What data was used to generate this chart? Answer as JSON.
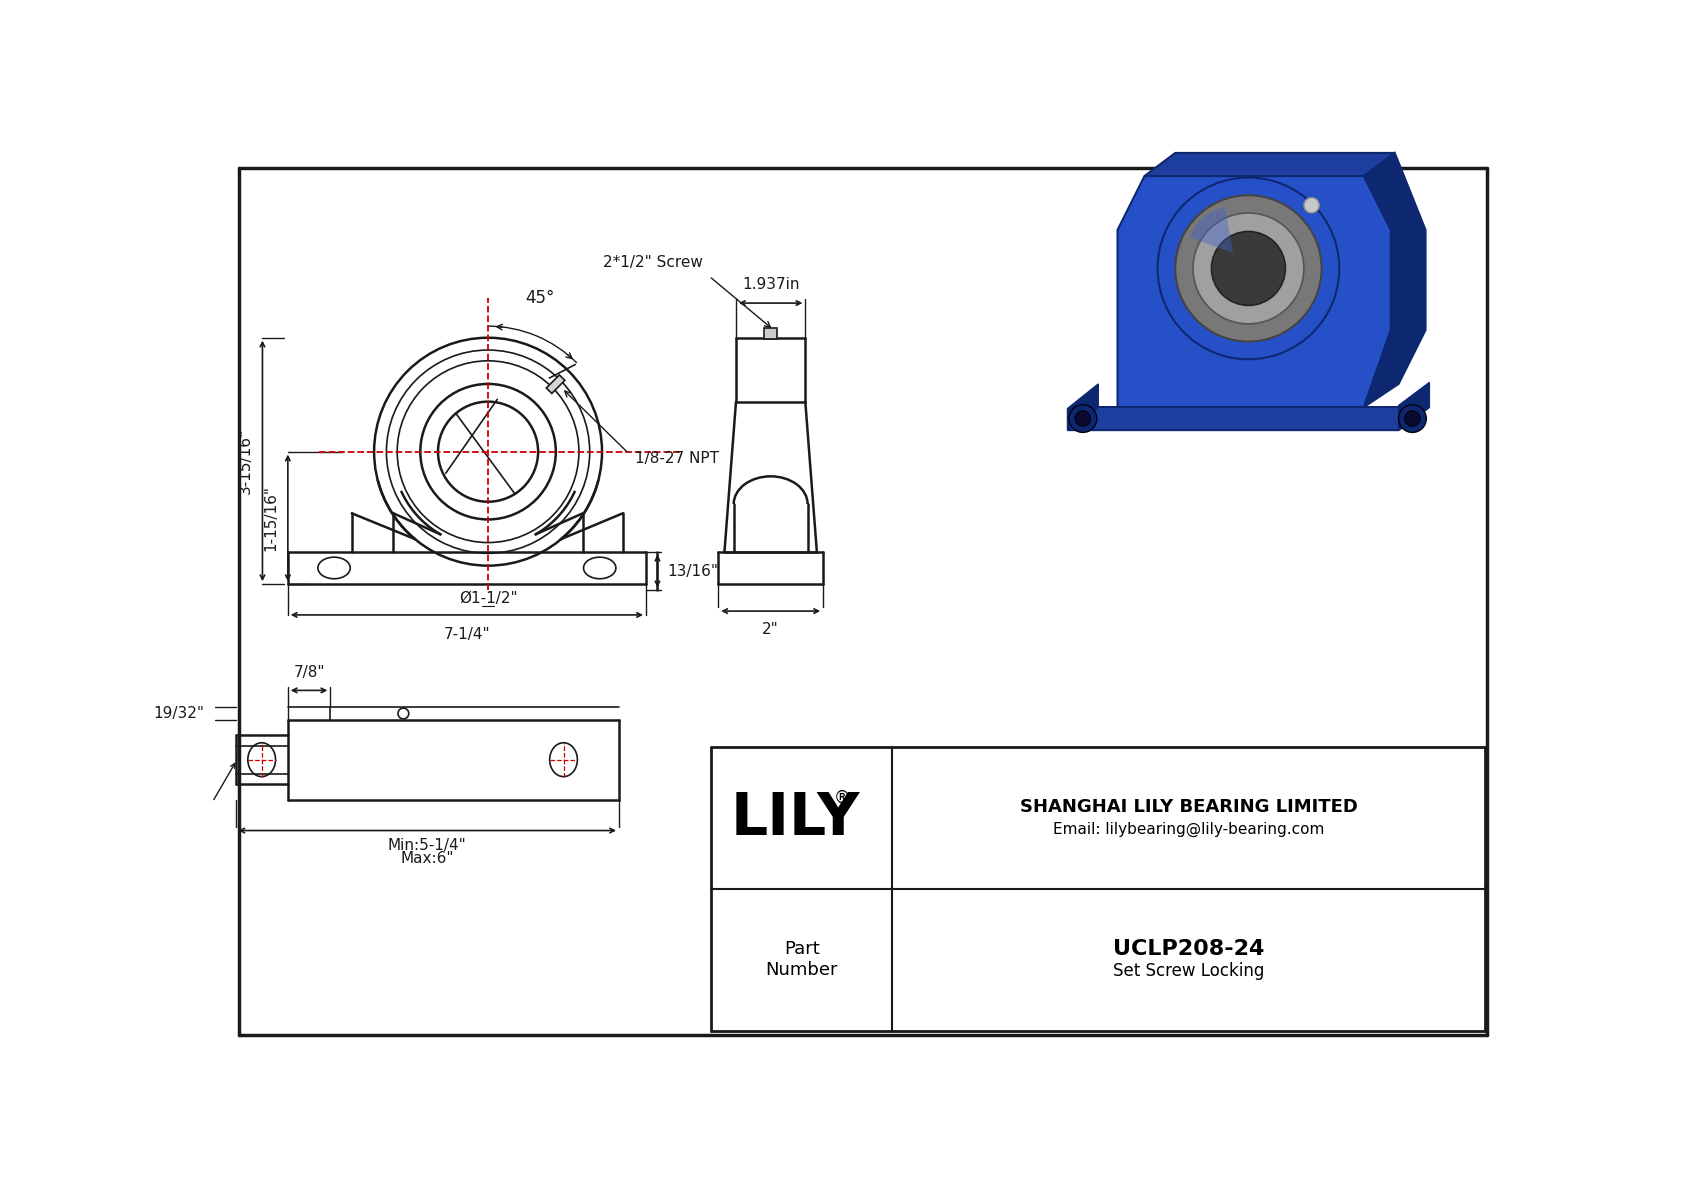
{
  "bg_color": "#ffffff",
  "lc": "#1a1a1a",
  "rc": "#cc0000",
  "blue1": "#1e3fa0",
  "blue2": "#2650c8",
  "blue3": "#0d2870",
  "gray1": "#787878",
  "gray2": "#a0a0a0",
  "gray3": "#c8c8c8",
  "company": "SHANGHAI LILY BEARING LIMITED",
  "email": "Email: lilybearing@lily-bearing.com",
  "part_number": "UCLP208-24",
  "locking": "Set Screw Locking",
  "logo": "LILY",
  "d_height": "3-15/16\"",
  "d_center": "1-15/16\"",
  "d_bore": "Ø1-1/2\"",
  "d_width": "7-1/4\"",
  "d_foot": "13/16\"",
  "d_sw": "2\"",
  "d_top": "1.937in",
  "d_screw": "2*1/2\" Screw",
  "d_npt": "1/8-27 NPT",
  "d_angle": "45°",
  "d_78": "7/8\"",
  "d_1932": "19/32\"",
  "d_min": "Min:5-1/4\"",
  "d_max": "Max:6\""
}
